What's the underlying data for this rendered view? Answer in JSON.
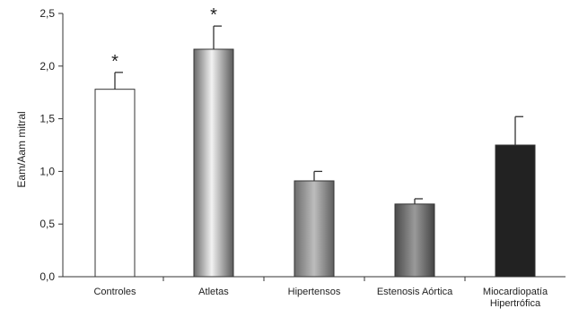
{
  "chart_data": {
    "type": "bar",
    "title": "",
    "ylabel": "Eam/Aam mitral",
    "xlabel": "",
    "ylim": [
      0,
      2.5
    ],
    "yticks": [
      "0,0",
      "0,5",
      "1,0",
      "1,5",
      "2,0",
      "2,5"
    ],
    "ytick_values": [
      0,
      0.5,
      1.0,
      1.5,
      2.0,
      2.5
    ],
    "grid": false,
    "categories": [
      [
        "Controles"
      ],
      [
        "Atletas"
      ],
      [
        "Hipertensos"
      ],
      [
        "Estenosis Aórtica"
      ],
      [
        "Miocardiopatía",
        "Hipertrófica"
      ]
    ],
    "values": [
      1.78,
      2.16,
      0.91,
      0.69,
      1.25
    ],
    "error_upper": [
      1.94,
      2.38,
      1.0,
      0.74,
      1.52
    ],
    "significance": [
      "*",
      "*",
      "",
      "",
      ""
    ],
    "bar_styles": [
      "white",
      "gray-gradient-light",
      "gray-gradient-mid",
      "gray-gradient-dark",
      "black"
    ],
    "colors": {
      "axis": "#333333",
      "bar_outline": "#333333",
      "black_bar": "#222222"
    }
  }
}
